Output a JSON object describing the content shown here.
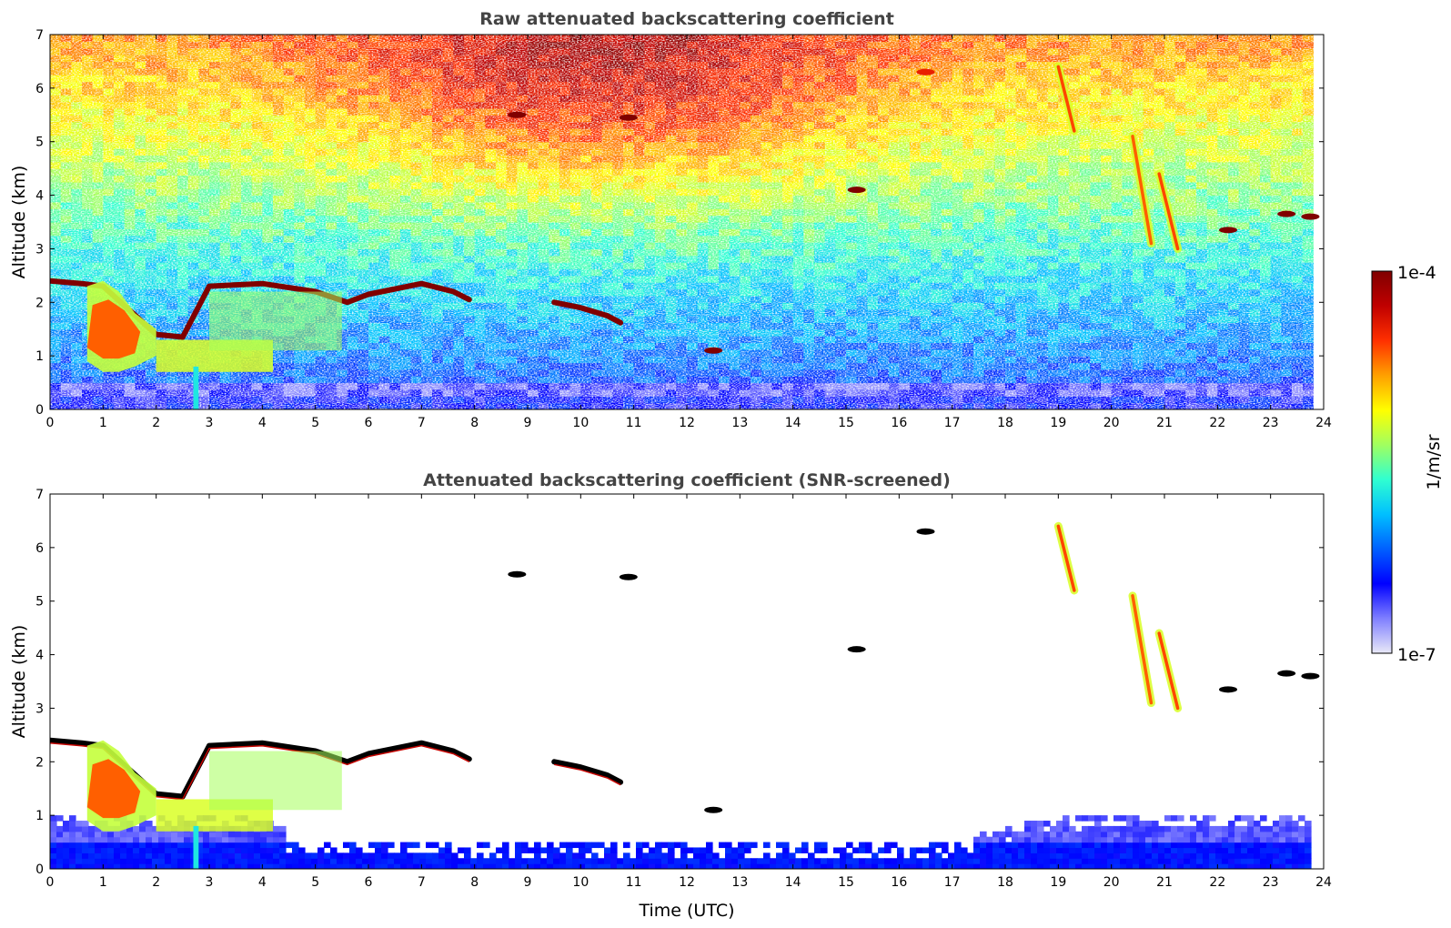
{
  "chart_data": [
    {
      "type": "heatmap",
      "title": "Raw attenuated backscattering coefficient",
      "xlabel": "",
      "ylabel": "Altitude (km)",
      "xlim": [
        0,
        24
      ],
      "ylim": [
        0,
        7
      ],
      "xticks": [
        "0",
        "1",
        "2",
        "3",
        "4",
        "5",
        "6",
        "7",
        "8",
        "9",
        "10",
        "11",
        "12",
        "13",
        "14",
        "15",
        "16",
        "17",
        "18",
        "19",
        "20",
        "21",
        "22",
        "23",
        "24"
      ],
      "yticks": [
        "0",
        "1",
        "2",
        "3",
        "4",
        "5",
        "6",
        "7"
      ],
      "grid": false,
      "features": [
        {
          "kind": "cloud_layer",
          "time": [
            0.0,
            0.6,
            1.0,
            2.0,
            2.5,
            3.0,
            4.0,
            5.0,
            5.6,
            6.0,
            7.0,
            7.6,
            7.9
          ],
          "alt": [
            2.4,
            2.35,
            2.3,
            1.4,
            1.35,
            2.3,
            2.35,
            2.2,
            2.0,
            2.15,
            2.35,
            2.2,
            2.05
          ],
          "level": 1.0
        },
        {
          "kind": "cloud_layer",
          "time": [
            9.5,
            10.0,
            10.5,
            10.75
          ],
          "alt": [
            2.0,
            1.9,
            1.75,
            1.62
          ],
          "level": 1.0
        },
        {
          "kind": "plume",
          "time": [
            0.7,
            1.0,
            1.3,
            1.6,
            2.0
          ],
          "alt_top": [
            2.3,
            2.4,
            2.2,
            1.8,
            1.5
          ],
          "alt_bottom": [
            0.9,
            0.7,
            0.7,
            0.8,
            1.0
          ],
          "level": 0.78
        },
        {
          "kind": "fall_streak",
          "time": [
            19.0,
            19.3
          ],
          "alt": [
            6.4,
            5.2
          ],
          "level": 0.8
        },
        {
          "kind": "fall_streak",
          "time": [
            20.4,
            20.75
          ],
          "alt": [
            5.1,
            3.1
          ],
          "level": 0.78
        },
        {
          "kind": "fall_streak",
          "time": [
            20.9,
            21.25
          ],
          "alt": [
            4.4,
            3.0
          ],
          "level": 0.8
        },
        {
          "kind": "patch",
          "time": 22.2,
          "alt": 3.35,
          "level": 1.0
        },
        {
          "kind": "patch",
          "time": 23.3,
          "alt": 3.65,
          "level": 1.0
        },
        {
          "kind": "patch",
          "time": 23.75,
          "alt": 3.6,
          "level": 1.0
        },
        {
          "kind": "patch",
          "time": 8.8,
          "alt": 5.5,
          "level": 1.0
        },
        {
          "kind": "patch",
          "time": 10.9,
          "alt": 5.45,
          "level": 1.0
        },
        {
          "kind": "patch",
          "time": 15.2,
          "alt": 4.1,
          "level": 1.0
        },
        {
          "kind": "patch",
          "time": 16.5,
          "alt": 6.3,
          "level": 0.85
        },
        {
          "kind": "patch",
          "time": 12.5,
          "alt": 1.1,
          "level": 1.0
        }
      ]
    },
    {
      "type": "heatmap",
      "title": "Attenuated backscattering coefficient (SNR-screened)",
      "xlabel": "Time (UTC)",
      "ylabel": "Altitude (km)",
      "xlim": [
        0,
        24
      ],
      "ylim": [
        0,
        7
      ],
      "xticks": [
        "0",
        "1",
        "2",
        "3",
        "4",
        "5",
        "6",
        "7",
        "8",
        "9",
        "10",
        "11",
        "12",
        "13",
        "14",
        "15",
        "16",
        "17",
        "18",
        "19",
        "20",
        "21",
        "22",
        "23",
        "24"
      ],
      "yticks": [
        "0",
        "1",
        "2",
        "3",
        "4",
        "5",
        "6",
        "7"
      ],
      "grid": false,
      "screened": true
    }
  ],
  "colorbar": {
    "min_label": "1e-7",
    "max_label": "1e-4",
    "unit": "1/m/sr",
    "colors": [
      "#e9e9f7",
      "#7f7fff",
      "#0000ff",
      "#0060ff",
      "#00c0ff",
      "#30ffd0",
      "#a0ff60",
      "#ffff00",
      "#ffa000",
      "#ff3000",
      "#c00000",
      "#800000"
    ]
  }
}
